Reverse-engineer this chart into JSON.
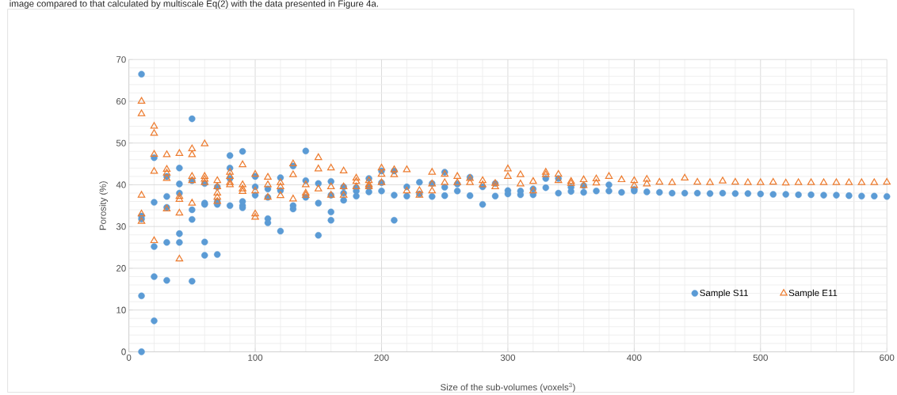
{
  "chart_data": {
    "type": "scatter",
    "xlabel": "Size of the sub-volumes (voxels$^{3}$)",
    "ylabel": "Porosity (%)",
    "annotations": [
      "image compared to that calculated by multiscale Eq(2) with the data presented in Figure 4a."
    ],
    "xlim": [
      0,
      600
    ],
    "xticks": [
      0,
      100,
      200,
      300,
      400,
      500,
      600
    ],
    "ylim": [
      0,
      70
    ],
    "yticks": [
      0,
      10,
      20,
      30,
      40,
      50,
      60,
      70
    ],
    "grid": true,
    "legend": "bottom right",
    "series": [
      {
        "name": "Sample S11",
        "color": "#5b9bd5",
        "marker": "circle",
        "x": [
          10,
          10,
          10,
          10,
          10,
          20,
          20,
          20,
          20,
          20,
          30,
          30,
          30,
          30,
          30,
          40,
          40,
          40,
          40,
          40,
          50,
          50,
          50,
          50,
          50,
          60,
          60,
          60,
          60,
          60,
          70,
          70,
          70,
          70,
          80,
          80,
          80,
          80,
          90,
          90,
          90,
          90,
          100,
          100,
          100,
          110,
          110,
          110,
          110,
          120,
          120,
          120,
          130,
          130,
          130,
          140,
          140,
          140,
          150,
          150,
          150,
          160,
          160,
          160,
          160,
          170,
          170,
          170,
          180,
          180,
          180,
          190,
          190,
          190,
          200,
          200,
          200,
          210,
          210,
          210,
          220,
          220,
          230,
          230,
          240,
          240,
          250,
          250,
          250,
          260,
          260,
          270,
          270,
          280,
          280,
          290,
          290,
          300,
          300,
          310,
          310,
          320,
          320,
          330,
          330,
          340,
          340,
          350,
          350,
          360,
          360,
          370,
          380,
          380,
          390,
          400,
          400,
          410,
          420,
          430,
          440,
          450,
          460,
          470,
          480,
          490,
          500,
          510,
          520,
          530,
          540,
          550,
          560,
          570,
          580,
          590,
          600
        ],
        "values": [
          66.5,
          32.5,
          31.8,
          13.4,
          0,
          46.5,
          35.8,
          25.2,
          18,
          7.4,
          42,
          37.2,
          34.6,
          26.2,
          17.1,
          44,
          40.2,
          38,
          28.3,
          26.2,
          55.8,
          41,
          34,
          31.7,
          16.9,
          40.3,
          35.6,
          35.3,
          26.3,
          23.1,
          39.5,
          36,
          35.3,
          23.3,
          47,
          44,
          41.5,
          35,
          48,
          36,
          35,
          34.5,
          42,
          39.5,
          37.5,
          39,
          37,
          31.9,
          30.9,
          41.7,
          38.6,
          28.9,
          44.5,
          35,
          34.2,
          48.1,
          41,
          37,
          40.3,
          35.6,
          27.9,
          40.8,
          37.5,
          33.5,
          31.5,
          39.5,
          38,
          36.3,
          39.3,
          38.5,
          37.3,
          41.5,
          39.5,
          38.3,
          43.3,
          40.5,
          38.5,
          43.3,
          37.5,
          31.5,
          39.5,
          37.3,
          40.6,
          37.8,
          40.3,
          37.2,
          43,
          39.4,
          37.4,
          40.2,
          38.5,
          41.8,
          37.4,
          39.5,
          35.3,
          40.3,
          37.3,
          38.6,
          37.8,
          38.5,
          37.6,
          39,
          37.6,
          41.5,
          39.3,
          41.5,
          38,
          39.4,
          38.4,
          39.8,
          38.2,
          38.5,
          40,
          38.5,
          38.2,
          38.9,
          38.5,
          38.3,
          38.2,
          38,
          38,
          38,
          37.9,
          38,
          37.9,
          37.9,
          37.8,
          37.7,
          37.7,
          37.6,
          37.6,
          37.5,
          37.5,
          37.4,
          37.3,
          37.3,
          37.2
        ]
      },
      {
        "name": "Sample E11",
        "color": "#ed7d31",
        "marker": "triangle",
        "x": [
          10,
          10,
          10,
          10,
          10,
          20,
          20,
          20,
          20,
          20,
          30,
          30,
          30,
          30,
          30,
          40,
          40,
          40,
          40,
          40,
          50,
          50,
          50,
          50,
          50,
          60,
          60,
          60,
          60,
          70,
          70,
          70,
          70,
          70,
          80,
          80,
          80,
          80,
          90,
          90,
          90,
          90,
          100,
          100,
          100,
          100,
          110,
          110,
          110,
          120,
          120,
          120,
          130,
          130,
          130,
          140,
          140,
          140,
          150,
          150,
          150,
          160,
          160,
          160,
          170,
          170,
          170,
          180,
          180,
          180,
          190,
          190,
          190,
          200,
          200,
          200,
          210,
          210,
          220,
          220,
          230,
          230,
          240,
          240,
          240,
          250,
          250,
          260,
          260,
          270,
          270,
          280,
          280,
          290,
          290,
          300,
          300,
          310,
          310,
          320,
          320,
          330,
          330,
          340,
          340,
          350,
          350,
          360,
          360,
          370,
          370,
          380,
          390,
          400,
          400,
          410,
          410,
          420,
          430,
          440,
          450,
          460,
          470,
          480,
          490,
          500,
          510,
          520,
          530,
          540,
          550,
          560,
          570,
          580,
          590,
          600
        ],
        "values": [
          60,
          57,
          37.5,
          33,
          31.2,
          54,
          52.3,
          47.3,
          43.2,
          26.6,
          47.2,
          43.7,
          42.8,
          41.5,
          34.2,
          47.5,
          37.2,
          36.5,
          33.2,
          22.2,
          48.6,
          47.2,
          42,
          41,
          35.6,
          49.8,
          42,
          41.3,
          40.5,
          41,
          39.5,
          38,
          37,
          36,
          43,
          42,
          40.5,
          40,
          44.8,
          40,
          39,
          38.4,
          42.5,
          38.5,
          33,
          32.2,
          41.8,
          40,
          37,
          40.5,
          39.5,
          37.4,
          45,
          42.4,
          36.6,
          40,
          38,
          37.5,
          46.5,
          43.8,
          39,
          44,
          39.5,
          37.5,
          43.3,
          39.5,
          37.5,
          41.6,
          40.8,
          39.5,
          41,
          40,
          39.5,
          44,
          42.5,
          40.5,
          43.6,
          42.4,
          43.6,
          38.5,
          38.6,
          37.5,
          43,
          40.2,
          38.5,
          42.5,
          40.5,
          42,
          40.5,
          41.5,
          40.5,
          41,
          40,
          40.3,
          39.5,
          43.8,
          42,
          42.4,
          40.2,
          40.8,
          38.5,
          43,
          42.4,
          42.5,
          41,
          40.8,
          40.3,
          41.2,
          39.8,
          41.4,
          40.4,
          42,
          41.2,
          41,
          39.8,
          41.3,
          40.2,
          40.6,
          40.5,
          41.6,
          40.6,
          40.5,
          40.9,
          40.6,
          40.5,
          40.5,
          40.6,
          40.4,
          40.5,
          40.5,
          40.5,
          40.5,
          40.5,
          40.5,
          40.5,
          40.6
        ]
      }
    ]
  }
}
